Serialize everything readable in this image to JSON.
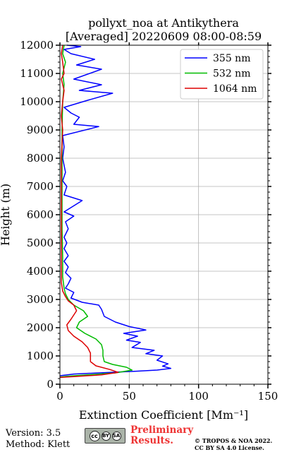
{
  "chart_data": {
    "type": "line",
    "title": [
      "pollyxt_noa at Antikythera",
      "[Averaged] 20220609 08:00-08:59"
    ],
    "xlabel": "Extinction Coefficient [Mm⁻¹]",
    "ylabel": "Height (m)",
    "xlim": [
      0,
      150
    ],
    "ylim": [
      0,
      12000
    ],
    "xticks": [
      0,
      50,
      100,
      150
    ],
    "yticks": [
      0,
      1000,
      2000,
      3000,
      4000,
      5000,
      6000,
      7000,
      8000,
      9000,
      10000,
      11000,
      12000
    ],
    "grid": true,
    "legend_position": "top-right",
    "series": [
      {
        "name": "355 nm",
        "color": "#0000ff",
        "points": [
          [
            0,
            300
          ],
          [
            10,
            360
          ],
          [
            28,
            400
          ],
          [
            55,
            460
          ],
          [
            70,
            500
          ],
          [
            80,
            560
          ],
          [
            74,
            640
          ],
          [
            78,
            720
          ],
          [
            70,
            850
          ],
          [
            74,
            1000
          ],
          [
            62,
            1080
          ],
          [
            68,
            1200
          ],
          [
            52,
            1300
          ],
          [
            58,
            1480
          ],
          [
            48,
            1560
          ],
          [
            56,
            1700
          ],
          [
            46,
            1800
          ],
          [
            62,
            1920
          ],
          [
            50,
            2040
          ],
          [
            40,
            2200
          ],
          [
            32,
            2400
          ],
          [
            30,
            2650
          ],
          [
            28,
            2800
          ],
          [
            16,
            2900
          ],
          [
            8,
            3050
          ],
          [
            10,
            3250
          ],
          [
            4,
            3400
          ],
          [
            6,
            3550
          ],
          [
            8,
            3750
          ],
          [
            4,
            3950
          ],
          [
            6,
            4150
          ],
          [
            3,
            4350
          ],
          [
            6,
            4550
          ],
          [
            3,
            4800
          ],
          [
            5,
            5000
          ],
          [
            3,
            5200
          ],
          [
            6,
            5500
          ],
          [
            4,
            5750
          ],
          [
            10,
            5950
          ],
          [
            3,
            6100
          ],
          [
            16,
            6500
          ],
          [
            3,
            6700
          ],
          [
            5,
            7000
          ],
          [
            2,
            7200
          ],
          [
            4,
            7500
          ],
          [
            2,
            8000
          ],
          [
            3,
            8400
          ],
          [
            2,
            8800
          ],
          [
            28,
            9120
          ],
          [
            10,
            9200
          ],
          [
            14,
            9450
          ],
          [
            8,
            9600
          ],
          [
            3,
            9800
          ],
          [
            20,
            10050
          ],
          [
            38,
            10300
          ],
          [
            14,
            10400
          ],
          [
            30,
            10600
          ],
          [
            10,
            10800
          ],
          [
            30,
            11150
          ],
          [
            12,
            11300
          ],
          [
            25,
            11500
          ],
          [
            8,
            11700
          ],
          [
            3,
            11850
          ],
          [
            15,
            11950
          ],
          [
            5,
            12000
          ]
        ]
      },
      {
        "name": "532 nm",
        "color": "#00bb00",
        "points": [
          [
            0,
            250
          ],
          [
            5,
            280
          ],
          [
            20,
            330
          ],
          [
            40,
            400
          ],
          [
            52,
            500
          ],
          [
            48,
            600
          ],
          [
            38,
            700
          ],
          [
            32,
            800
          ],
          [
            31,
            1000
          ],
          [
            31,
            1200
          ],
          [
            30,
            1400
          ],
          [
            26,
            1600
          ],
          [
            18,
            1800
          ],
          [
            12,
            2000
          ],
          [
            14,
            2200
          ],
          [
            20,
            2400
          ],
          [
            17,
            2600
          ],
          [
            10,
            2800
          ],
          [
            6,
            3000
          ],
          [
            4,
            3200
          ],
          [
            3,
            3400
          ],
          [
            2,
            3800
          ],
          [
            2,
            4500
          ],
          [
            1.5,
            5500
          ],
          [
            1.5,
            7000
          ],
          [
            1.5,
            9000
          ],
          [
            2,
            10000
          ],
          [
            3,
            10600
          ],
          [
            2,
            11000
          ],
          [
            4,
            11400
          ],
          [
            2,
            11700
          ],
          [
            3,
            12000
          ]
        ]
      },
      {
        "name": "1064 nm",
        "color": "#dd0000",
        "points": [
          [
            0,
            240
          ],
          [
            10,
            270
          ],
          [
            30,
            330
          ],
          [
            42,
            420
          ],
          [
            36,
            520
          ],
          [
            26,
            650
          ],
          [
            22,
            800
          ],
          [
            22,
            1000
          ],
          [
            22,
            1100
          ],
          [
            20,
            1300
          ],
          [
            16,
            1500
          ],
          [
            10,
            1700
          ],
          [
            6,
            1900
          ],
          [
            5,
            2100
          ],
          [
            8,
            2300
          ],
          [
            12,
            2600
          ],
          [
            10,
            2800
          ],
          [
            6,
            2950
          ],
          [
            4,
            3100
          ],
          [
            2,
            3300
          ],
          [
            1,
            3600
          ],
          [
            1,
            5000
          ],
          [
            1,
            8000
          ],
          [
            2,
            9000
          ],
          [
            1,
            9500
          ],
          [
            2,
            10000
          ],
          [
            3,
            10400
          ],
          [
            1,
            10800
          ],
          [
            3,
            11000
          ],
          [
            2,
            11400
          ],
          [
            1,
            11700
          ],
          [
            2,
            12000
          ]
        ]
      }
    ]
  },
  "footer": {
    "version": "Version: 3.5",
    "method": "Method: Klett",
    "license_badge": {
      "cc": "cc",
      "by": "BY",
      "sa": "SA",
      "color": "#aab3a8"
    },
    "preliminary_line1": "Preliminary",
    "preliminary_line2": "Results.",
    "copyright_line1": "© TROPOS & NOA 2022.",
    "copyright_line2": "CC BY SA 4.0 License."
  }
}
